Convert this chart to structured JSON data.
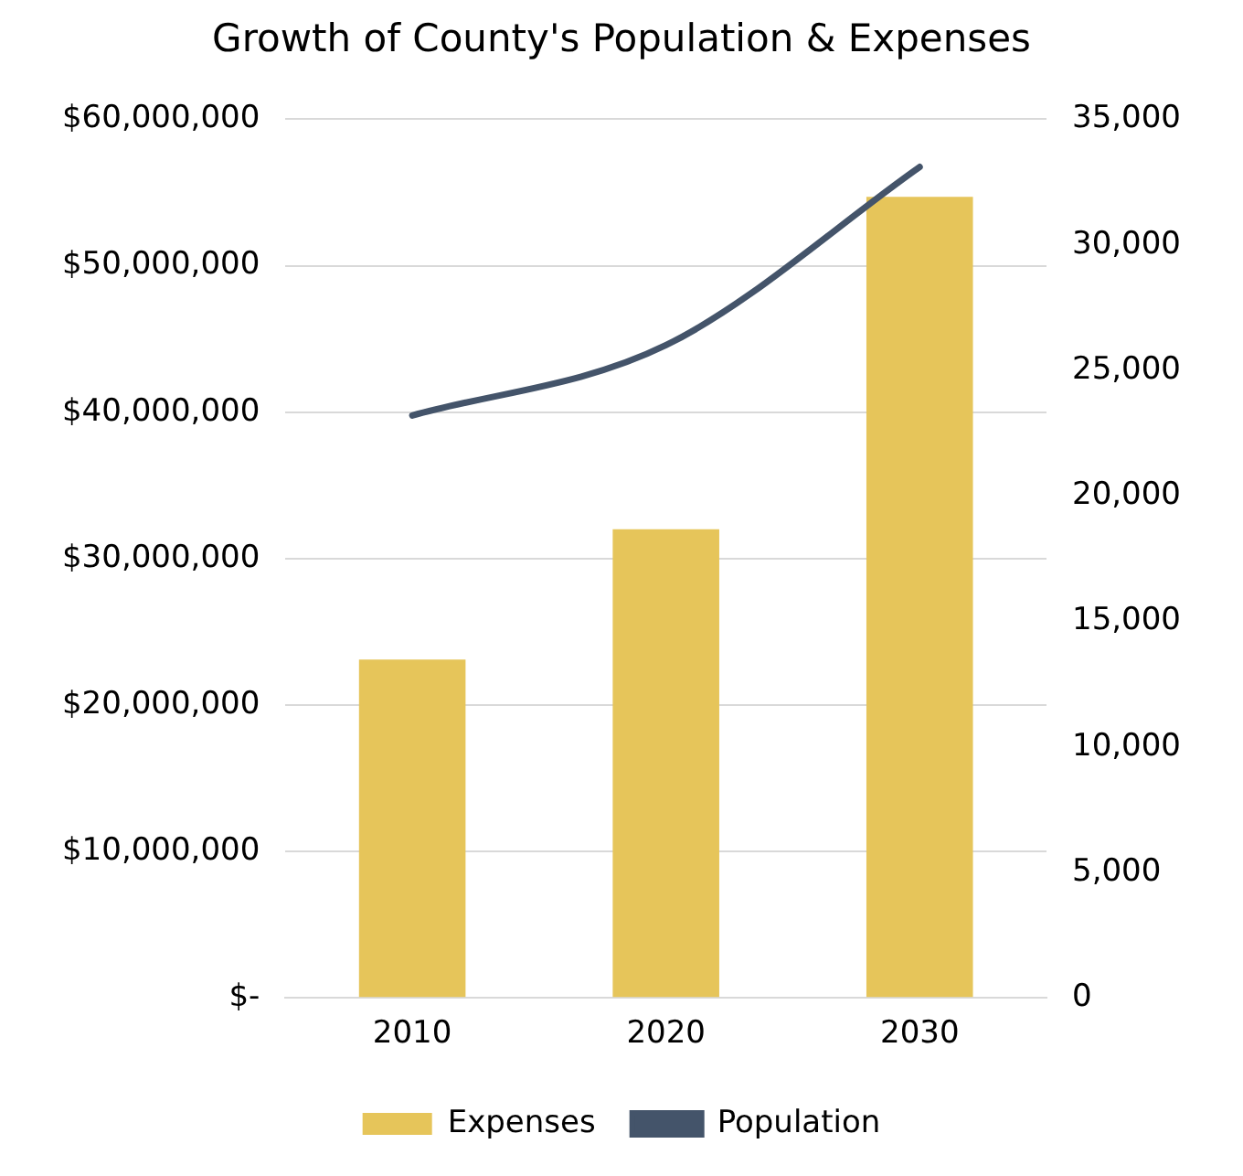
{
  "chart_data": {
    "type": "bar",
    "title": "Growth of County's Population & Expenses",
    "categories": [
      "2010",
      "2020",
      "2030"
    ],
    "series": [
      {
        "name": "Expenses",
        "color": "#e6c55a",
        "values": [
          23100000,
          32000000,
          54700000
        ]
      },
      {
        "name": "Population",
        "type": "line",
        "axis": "y2",
        "color": "#44546a",
        "values": [
          23200,
          26000,
          33100
        ]
      }
    ],
    "ylim": [
      0,
      60000000
    ],
    "yticks": [
      {
        "value": 0,
        "label": "$-"
      },
      {
        "value": 10000000,
        "label": "$10,000,000"
      },
      {
        "value": 20000000,
        "label": "$20,000,000"
      },
      {
        "value": 30000000,
        "label": "$30,000,000"
      },
      {
        "value": 40000000,
        "label": "$40,000,000"
      },
      {
        "value": 50000000,
        "label": "$50,000,000"
      },
      {
        "value": 60000000,
        "label": "$60,000,000"
      }
    ],
    "y2lim": [
      0,
      35000
    ],
    "y2ticks": [
      0,
      {
        "value": 5000,
        "label": "5,000"
      },
      {
        "value": 10000,
        "label": "10,000"
      },
      {
        "value": 15000,
        "label": "15,000"
      },
      {
        "value": 20000,
        "label": "20,000"
      },
      {
        "value": 25000,
        "label": "25,000"
      },
      {
        "value": 30000,
        "label": "30,000"
      },
      {
        "value": 35000,
        "label": "35,000"
      }
    ],
    "grid": "y",
    "legend": "bottom",
    "marker": "none",
    "line_style": "solid"
  }
}
